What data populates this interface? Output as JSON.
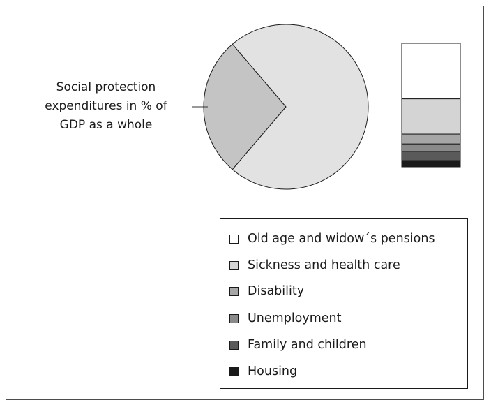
{
  "chart_data": {
    "type": "pie",
    "annotation": [
      "Social protection",
      "expenditures in % of",
      "GDP as a whole"
    ],
    "slices": [
      {
        "label": "Social protection expenditures",
        "value": 27.5,
        "color": "#c4c4c4"
      },
      {
        "label": "",
        "value": 72.5,
        "color": "#e2e2e2"
      }
    ],
    "breakdown": {
      "type": "stacked-bar",
      "segments": [
        {
          "label": "Old age and widow´s pensions",
          "value": 45,
          "color": "#ffffff"
        },
        {
          "label": "Sickness and health care",
          "value": 28.5,
          "color": "#d4d4d4"
        },
        {
          "label": "Disability",
          "value": 8,
          "color": "#a6a6a6"
        },
        {
          "label": "Unemployment",
          "value": 6,
          "color": "#8a8a8a"
        },
        {
          "label": "Family and children",
          "value": 7.5,
          "color": "#5a5a5a"
        },
        {
          "label": "Housing",
          "value": 5,
          "color": "#1a1a1a"
        }
      ]
    },
    "legend": {
      "position": "bottom-right",
      "items": [
        {
          "label": "Old age and widow´s pensions",
          "color": "#ffffff"
        },
        {
          "label": "Sickness and health care",
          "color": "#d4d4d4"
        },
        {
          "label": "Disability",
          "color": "#a6a6a6"
        },
        {
          "label": "Unemployment",
          "color": "#8a8a8a"
        },
        {
          "label": "Family and children",
          "color": "#5a5a5a"
        },
        {
          "label": "Housing",
          "color": "#1a1a1a"
        }
      ]
    }
  }
}
